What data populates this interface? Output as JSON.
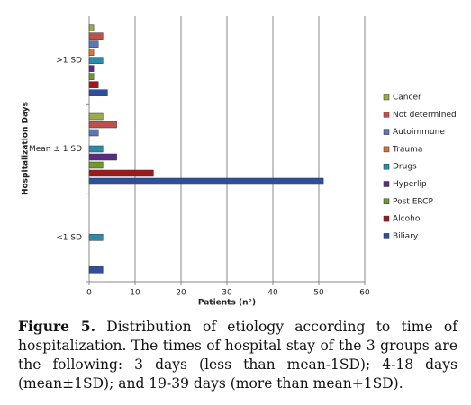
{
  "chart_data": {
    "type": "bar",
    "orientation": "horizontal",
    "x_label": "Patients (n°)",
    "y_label": "Hospitalization Days",
    "categories": [
      "<1 SD",
      "Mean ± 1 SD",
      ">1 SD"
    ],
    "series": [
      {
        "name": "Biliary",
        "color": "#2d4f9e",
        "values": [
          3,
          51,
          4
        ]
      },
      {
        "name": "Alcohol",
        "color": "#9e1a1a",
        "values": [
          0,
          14,
          2
        ]
      },
      {
        "name": "Post ERCP",
        "color": "#6f9a2a",
        "values": [
          0,
          3,
          1
        ]
      },
      {
        "name": "Hyperlip",
        "color": "#5a2c82",
        "values": [
          0,
          6,
          1
        ]
      },
      {
        "name": "Drugs",
        "color": "#2a8cad",
        "values": [
          3,
          3,
          3
        ]
      },
      {
        "name": "Trauma",
        "color": "#e0722a",
        "values": [
          0,
          0,
          1
        ]
      },
      {
        "name": "Autoimmune",
        "color": "#5b78b6",
        "values": [
          0,
          2,
          2
        ]
      },
      {
        "name": "Not determined",
        "color": "#c0504d",
        "values": [
          0,
          6,
          3
        ]
      },
      {
        "name": "Cancer",
        "color": "#98ad48",
        "values": [
          0,
          3,
          1
        ]
      }
    ],
    "xlim": [
      0,
      60
    ],
    "xticks": [
      0,
      10,
      20,
      30,
      40,
      50,
      60
    ],
    "grid": true,
    "caption_label": "Figure 5.",
    "caption": "Distribution of etiology according to time of hospitalization. The times of hospital stay of the 3 groups are the following: 3 days (less than mean-1SD); 4-18 days (mean±1SD); and 19-39 days (more than mean+1SD)."
  }
}
